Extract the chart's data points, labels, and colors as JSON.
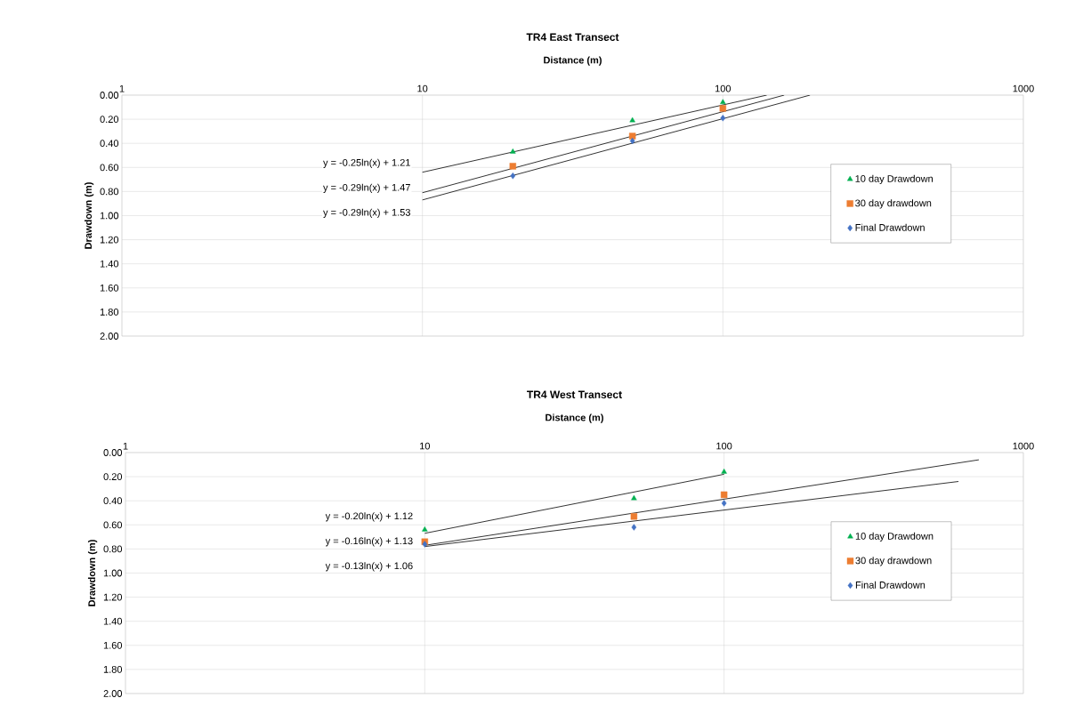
{
  "chart_data": [
    {
      "type": "scatter",
      "title": "TR4 East Transect",
      "xlabel": "Distance (m)",
      "ylabel": "Drawdown (m)",
      "log": "x",
      "grid": true,
      "legend": "right",
      "xlim": [
        1,
        1000
      ],
      "xticks": [
        1,
        10,
        100,
        1000
      ],
      "ylim": [
        2,
        0
      ],
      "yticks": [
        {
          "value": 0,
          "label": "0.00"
        },
        {
          "value": 0.2,
          "label": "0.20"
        },
        {
          "value": 0.4,
          "label": "0.40"
        },
        {
          "value": 0.6,
          "label": "0.60"
        },
        {
          "value": 0.8,
          "label": "0.80"
        },
        {
          "value": 1.0,
          "label": "1.00"
        },
        {
          "value": 1.2,
          "label": "1.20"
        },
        {
          "value": 1.4,
          "label": "1.40"
        },
        {
          "value": 1.6,
          "label": "1.60"
        },
        {
          "value": 1.8,
          "label": "1.80"
        },
        {
          "value": 2.0,
          "label": "2.00"
        }
      ],
      "series": [
        {
          "name": "10 day Drawdown",
          "color": "#00b050",
          "marker": "triangle",
          "x": [
            20,
            50,
            100
          ],
          "values": [
            0.47,
            0.21,
            0.06
          ]
        },
        {
          "name": "30 day drawdown",
          "color": "#ed7d31",
          "marker": "square",
          "x": [
            20,
            50,
            100
          ],
          "values": [
            0.59,
            0.34,
            0.11
          ]
        },
        {
          "name": "Final Drawdown",
          "color": "#4472c4",
          "marker": "diamond",
          "x": [
            20,
            50,
            100
          ],
          "values": [
            0.67,
            0.38,
            0.19
          ]
        },
        {
          "type": "line",
          "color": "#000000",
          "line_style": "solid",
          "x": [
            10,
            140
          ],
          "values": [
            0.64,
            0
          ]
        },
        {
          "type": "line",
          "color": "#000000",
          "line_style": "solid",
          "x": [
            10,
            160
          ],
          "values": [
            0.81,
            0
          ]
        },
        {
          "type": "line",
          "color": "#000000",
          "line_style": "solid",
          "x": [
            10,
            195
          ],
          "values": [
            0.87,
            0
          ]
        }
      ],
      "annotations": [
        "y = -0.25ln(x) + 1.21",
        "y = -0.29ln(x) + 1.47",
        "y = -0.29ln(x) + 1.53"
      ]
    },
    {
      "type": "scatter",
      "title": "TR4 West Transect",
      "xlabel": "Distance (m)",
      "ylabel": "Drawdown (m)",
      "log": "x",
      "grid": true,
      "legend": "right",
      "xlim": [
        1,
        1000
      ],
      "xticks": [
        1,
        10,
        100,
        1000
      ],
      "ylim": [
        2,
        0
      ],
      "yticks": [
        {
          "value": 0,
          "label": "0.00"
        },
        {
          "value": 0.2,
          "label": "0.20"
        },
        {
          "value": 0.4,
          "label": "0.40"
        },
        {
          "value": 0.6,
          "label": "0.60"
        },
        {
          "value": 0.8,
          "label": "0.80"
        },
        {
          "value": 1.0,
          "label": "1.00"
        },
        {
          "value": 1.2,
          "label": "1.20"
        },
        {
          "value": 1.4,
          "label": "1.40"
        },
        {
          "value": 1.6,
          "label": "1.60"
        },
        {
          "value": 1.8,
          "label": "1.80"
        },
        {
          "value": 2.0,
          "label": "2.00"
        }
      ],
      "series": [
        {
          "name": "10 day Drawdown",
          "color": "#00b050",
          "marker": "triangle",
          "x": [
            10,
            50,
            100
          ],
          "values": [
            0.64,
            0.38,
            0.16
          ]
        },
        {
          "name": "30 day drawdown",
          "color": "#ed7d31",
          "marker": "square",
          "x": [
            10,
            50,
            100
          ],
          "values": [
            0.74,
            0.53,
            0.35
          ]
        },
        {
          "name": "Final Drawdown",
          "color": "#4472c4",
          "marker": "diamond",
          "x": [
            10,
            50,
            100
          ],
          "values": [
            0.76,
            0.62,
            0.42
          ]
        },
        {
          "type": "line",
          "color": "#000000",
          "line_style": "solid",
          "x": [
            10,
            100
          ],
          "values": [
            0.67,
            0.18
          ]
        },
        {
          "type": "line",
          "color": "#000000",
          "line_style": "solid",
          "x": [
            10,
            710
          ],
          "values": [
            0.77,
            0.06
          ]
        },
        {
          "type": "line",
          "color": "#000000",
          "line_style": "solid",
          "x": [
            10,
            607
          ],
          "values": [
            0.78,
            0.24
          ]
        }
      ],
      "annotations": [
        "y = -0.20ln(x) + 1.12",
        "y = -0.16ln(x) + 1.13",
        "y = -0.13ln(x) + 1.06"
      ]
    }
  ]
}
